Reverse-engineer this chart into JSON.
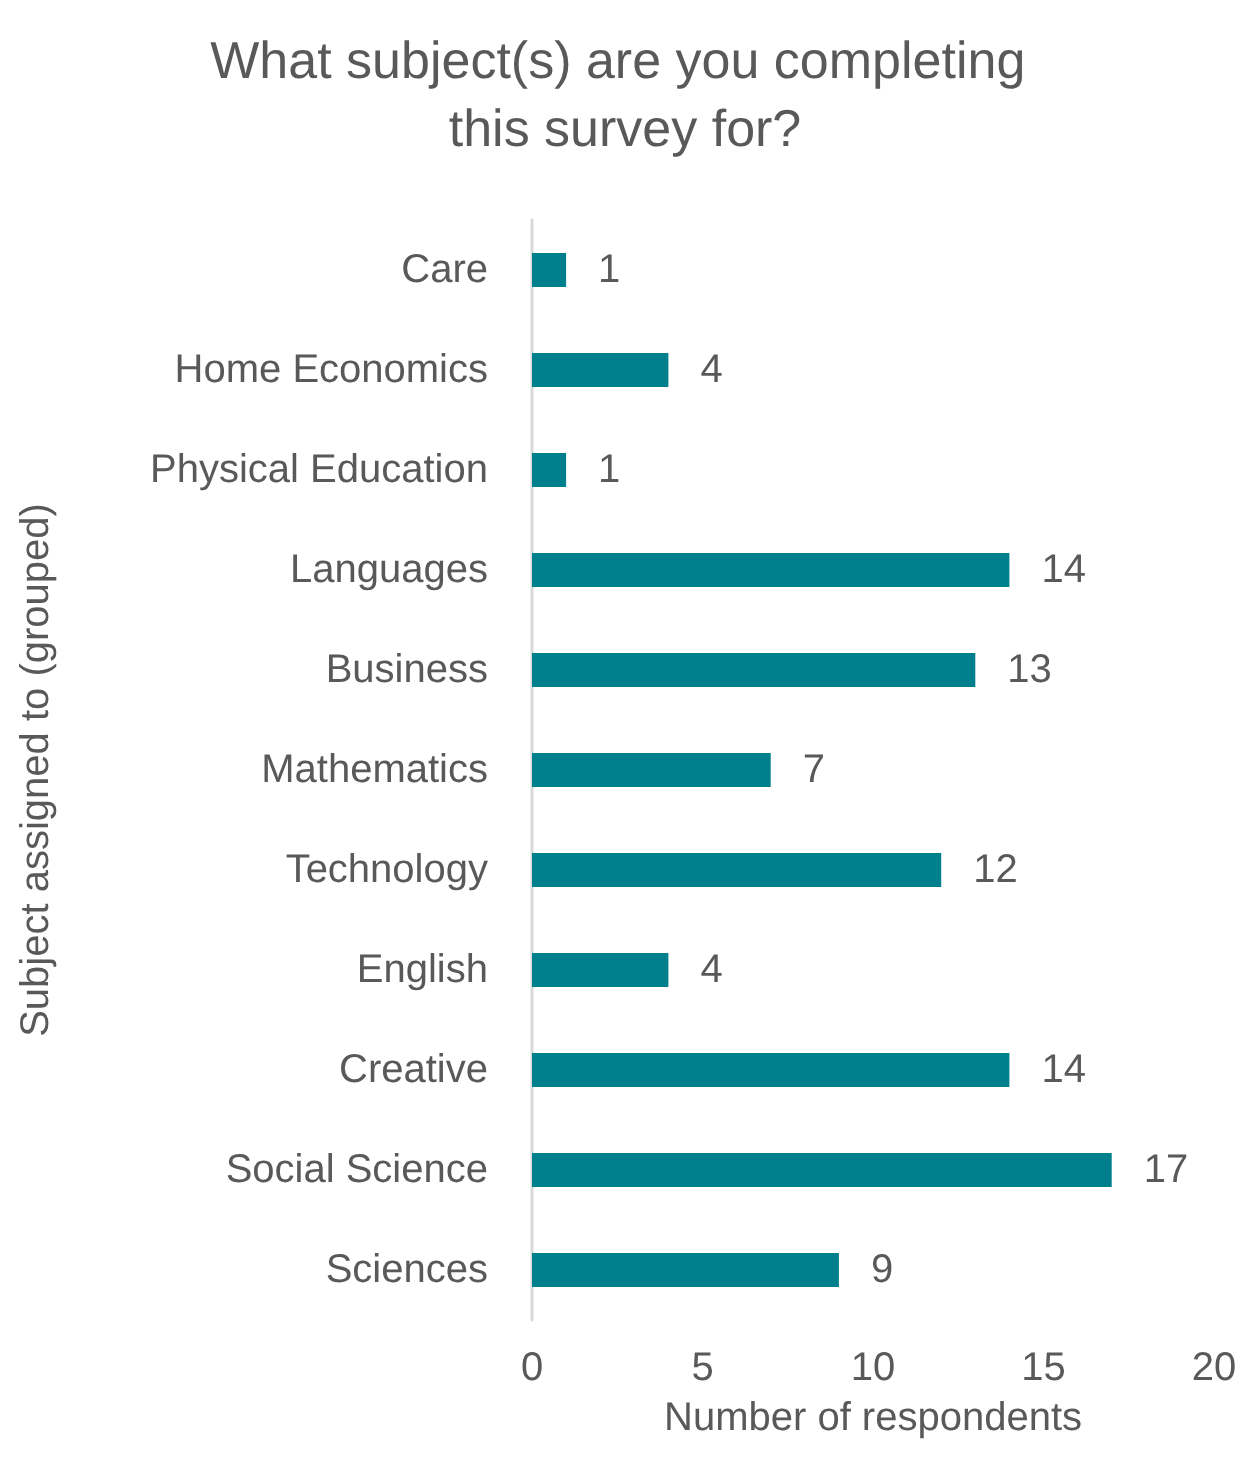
{
  "chart_data": {
    "type": "bar",
    "orientation": "horizontal",
    "title": "What subject(s) are you completing this survey for?",
    "xlabel": "Number of respondents",
    "ylabel": "Subject assigned to (grouped)",
    "categories": [
      "Care",
      "Home Economics",
      "Physical Education",
      "Languages",
      "Business",
      "Mathematics",
      "Technology",
      "English",
      "Creative",
      "Social Science",
      "Sciences"
    ],
    "values": [
      1,
      4,
      1,
      14,
      13,
      7,
      12,
      4,
      14,
      17,
      9
    ],
    "color": "#007f8c",
    "xlim": [
      0,
      20
    ],
    "xticks": [
      0,
      5,
      10,
      15,
      20
    ],
    "grid": false,
    "data_labels": true
  }
}
